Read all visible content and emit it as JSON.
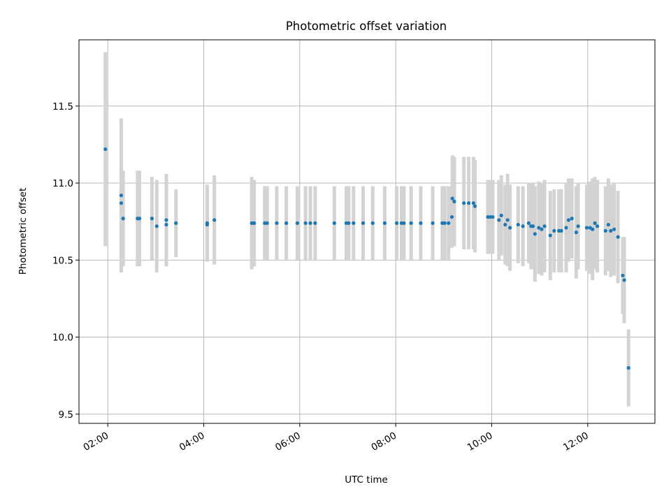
{
  "chart_data": {
    "type": "scatter",
    "title": "Photometric offset variation",
    "xlabel": "UTC time",
    "ylabel": "Photometric offset",
    "xlim": [
      1.4,
      13.4
    ],
    "ylim": [
      9.44,
      11.93
    ],
    "grid": true,
    "x_ticks": [
      {
        "value": 2,
        "label": "02:00"
      },
      {
        "value": 4,
        "label": "04:00"
      },
      {
        "value": 6,
        "label": "06:00"
      },
      {
        "value": 8,
        "label": "08:00"
      },
      {
        "value": 10,
        "label": "10:00"
      },
      {
        "value": 12,
        "label": "12:00"
      }
    ],
    "y_ticks": [
      {
        "value": 9.5,
        "label": "9.5"
      },
      {
        "value": 10.0,
        "label": "10.0"
      },
      {
        "value": 10.5,
        "label": "10.5"
      },
      {
        "value": 11.0,
        "label": "11.0"
      },
      {
        "value": 11.5,
        "label": "11.5"
      }
    ],
    "colors": {
      "points": "#1f77b4",
      "errorbars": "#d3d3d3",
      "grid": "#b0b0b0"
    },
    "series": [
      {
        "name": "offset",
        "x": [
          1.95,
          2.28,
          2.28,
          2.32,
          2.62,
          2.66,
          2.92,
          3.02,
          3.22,
          3.22,
          3.42,
          4.07,
          4.07,
          4.22,
          5.0,
          5.05,
          5.27,
          5.32,
          5.52,
          5.72,
          5.95,
          6.12,
          6.22,
          6.32,
          6.72,
          6.97,
          7.02,
          7.12,
          7.32,
          7.52,
          7.77,
          8.02,
          8.12,
          8.17,
          8.32,
          8.52,
          8.77,
          8.97,
          9.02,
          9.1,
          9.17,
          9.18,
          9.22,
          9.42,
          9.52,
          9.62,
          9.65,
          9.92,
          9.97,
          10.02,
          10.15,
          10.2,
          10.28,
          10.33,
          10.38,
          10.55,
          10.65,
          10.77,
          10.82,
          10.86,
          10.9,
          10.98,
          11.04,
          11.1,
          11.22,
          11.3,
          11.4,
          11.45,
          11.55,
          11.6,
          11.67,
          11.76,
          11.8,
          11.98,
          12.05,
          12.1,
          12.15,
          12.2,
          12.37,
          12.43,
          12.48,
          12.55,
          12.63,
          12.73,
          12.76,
          12.85
        ],
        "y": [
          11.22,
          10.92,
          10.87,
          10.77,
          10.77,
          10.77,
          10.77,
          10.72,
          10.76,
          10.73,
          10.74,
          10.74,
          10.73,
          10.76,
          10.74,
          10.74,
          10.74,
          10.74,
          10.74,
          10.74,
          10.74,
          10.74,
          10.74,
          10.74,
          10.74,
          10.74,
          10.74,
          10.74,
          10.74,
          10.74,
          10.74,
          10.74,
          10.74,
          10.74,
          10.74,
          10.74,
          10.74,
          10.74,
          10.74,
          10.74,
          10.78,
          10.9,
          10.88,
          10.87,
          10.87,
          10.87,
          10.85,
          10.78,
          10.78,
          10.78,
          10.76,
          10.79,
          10.73,
          10.76,
          10.71,
          10.73,
          10.72,
          10.74,
          10.72,
          10.72,
          10.67,
          10.71,
          10.7,
          10.72,
          10.66,
          10.69,
          10.69,
          10.69,
          10.71,
          10.76,
          10.77,
          10.68,
          10.72,
          10.71,
          10.71,
          10.7,
          10.74,
          10.72,
          10.69,
          10.73,
          10.69,
          10.7,
          10.65,
          10.4,
          10.37,
          9.8
        ],
        "err": [
          0.63,
          0.5,
          0.45,
          0.31,
          0.31,
          0.31,
          0.27,
          0.3,
          0.3,
          0.27,
          0.22,
          0.25,
          0.23,
          0.29,
          0.3,
          0.28,
          0.24,
          0.24,
          0.24,
          0.24,
          0.24,
          0.24,
          0.24,
          0.24,
          0.24,
          0.24,
          0.24,
          0.24,
          0.24,
          0.24,
          0.24,
          0.24,
          0.24,
          0.24,
          0.24,
          0.24,
          0.24,
          0.24,
          0.24,
          0.24,
          0.2,
          0.28,
          0.29,
          0.3,
          0.3,
          0.3,
          0.3,
          0.24,
          0.24,
          0.24,
          0.26,
          0.26,
          0.26,
          0.3,
          0.28,
          0.25,
          0.26,
          0.26,
          0.28,
          0.28,
          0.31,
          0.3,
          0.3,
          0.3,
          0.29,
          0.27,
          0.27,
          0.27,
          0.29,
          0.27,
          0.26,
          0.3,
          0.28,
          0.28,
          0.3,
          0.33,
          0.3,
          0.3,
          0.29,
          0.3,
          0.3,
          0.3,
          0.3,
          0.25,
          0.28,
          0.25
        ]
      }
    ]
  }
}
